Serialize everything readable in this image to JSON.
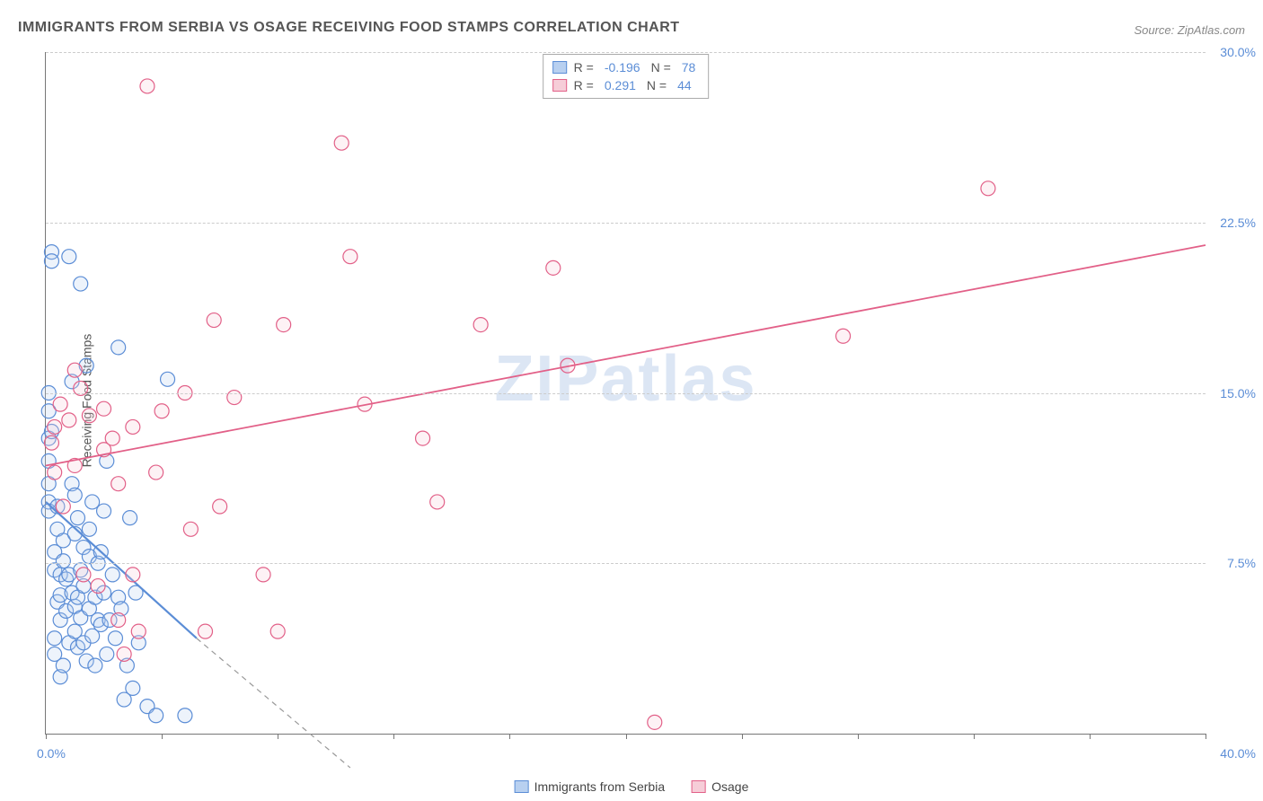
{
  "title": "IMMIGRANTS FROM SERBIA VS OSAGE RECEIVING FOOD STAMPS CORRELATION CHART",
  "source": "Source: ZipAtlas.com",
  "watermark": "ZIPatlas",
  "y_axis_title": "Receiving Food Stamps",
  "chart": {
    "type": "scatter",
    "background_color": "#ffffff",
    "grid_color": "#cccccc",
    "axis_color": "#777777",
    "tick_label_color": "#5b8dd6",
    "axis_title_color": "#555555",
    "tick_label_fontsize": 14,
    "title_fontsize": 16,
    "xlim": [
      0,
      40
    ],
    "ylim": [
      0,
      30
    ],
    "x_ticks": [
      0,
      4,
      8,
      12,
      16,
      20,
      24,
      28,
      32,
      36,
      40
    ],
    "y_ticks": [
      7.5,
      15.0,
      22.5,
      30.0
    ],
    "x_min_label": "0.0%",
    "x_max_label": "40.0%",
    "y_tick_labels": [
      "7.5%",
      "15.0%",
      "22.5%",
      "30.0%"
    ],
    "marker_radius": 8,
    "marker_fill_opacity": 0.25,
    "marker_stroke_width": 1.2
  },
  "stats_legend": {
    "rows": [
      {
        "swatch_fill": "#b8d0f0",
        "swatch_border": "#5b8dd6",
        "r_label": "R =",
        "r_value": "-0.196",
        "n_label": "N =",
        "n_value": "78"
      },
      {
        "swatch_fill": "#f6cdd8",
        "swatch_border": "#e26088",
        "r_label": "R =",
        "r_value": "0.291",
        "n_label": "N =",
        "n_value": "44"
      }
    ]
  },
  "bottom_legend": {
    "items": [
      {
        "swatch_fill": "#b8d0f0",
        "swatch_border": "#5b8dd6",
        "label": "Immigrants from Serbia"
      },
      {
        "swatch_fill": "#f6cdd8",
        "swatch_border": "#e26088",
        "label": "Osage"
      }
    ]
  },
  "series": [
    {
      "name": "Immigrants from Serbia",
      "color": "#5b8dd6",
      "fill": "#b8d0f0",
      "trend": {
        "x1": 0,
        "y1": 10.2,
        "x2": 5.2,
        "y2": 4.2,
        "solid_until_x": 5.2,
        "dash_to_x": 10.5,
        "dash_to_y": -1.5,
        "width": 2.2
      },
      "points": [
        [
          0.1,
          13.0
        ],
        [
          0.1,
          12.0
        ],
        [
          0.1,
          11.0
        ],
        [
          0.1,
          10.2
        ],
        [
          0.1,
          9.8
        ],
        [
          0.1,
          15.0
        ],
        [
          0.1,
          14.2
        ],
        [
          0.2,
          13.3
        ],
        [
          0.2,
          21.2
        ],
        [
          0.2,
          20.8
        ],
        [
          0.3,
          7.2
        ],
        [
          0.3,
          8.0
        ],
        [
          0.3,
          4.2
        ],
        [
          0.3,
          3.5
        ],
        [
          0.4,
          9.0
        ],
        [
          0.4,
          5.8
        ],
        [
          0.4,
          10.0
        ],
        [
          0.5,
          7.0
        ],
        [
          0.5,
          6.1
        ],
        [
          0.5,
          5.0
        ],
        [
          0.5,
          2.5
        ],
        [
          0.6,
          8.5
        ],
        [
          0.6,
          7.6
        ],
        [
          0.6,
          3.0
        ],
        [
          0.7,
          6.8
        ],
        [
          0.7,
          5.4
        ],
        [
          0.8,
          7.0
        ],
        [
          0.8,
          4.0
        ],
        [
          0.8,
          21.0
        ],
        [
          0.9,
          6.2
        ],
        [
          0.9,
          11.0
        ],
        [
          0.9,
          15.5
        ],
        [
          1.0,
          5.6
        ],
        [
          1.0,
          8.8
        ],
        [
          1.0,
          4.5
        ],
        [
          1.0,
          10.5
        ],
        [
          1.1,
          6.0
        ],
        [
          1.1,
          9.5
        ],
        [
          1.1,
          3.8
        ],
        [
          1.2,
          7.2
        ],
        [
          1.2,
          5.1
        ],
        [
          1.2,
          19.8
        ],
        [
          1.3,
          4.0
        ],
        [
          1.3,
          6.5
        ],
        [
          1.3,
          8.2
        ],
        [
          1.4,
          16.2
        ],
        [
          1.4,
          3.2
        ],
        [
          1.5,
          5.5
        ],
        [
          1.5,
          9.0
        ],
        [
          1.5,
          7.8
        ],
        [
          1.6,
          4.3
        ],
        [
          1.6,
          10.2
        ],
        [
          1.7,
          6.0
        ],
        [
          1.7,
          3.0
        ],
        [
          1.8,
          7.5
        ],
        [
          1.8,
          5.0
        ],
        [
          1.9,
          8.0
        ],
        [
          1.9,
          4.8
        ],
        [
          2.0,
          6.2
        ],
        [
          2.0,
          9.8
        ],
        [
          2.1,
          3.5
        ],
        [
          2.1,
          12.0
        ],
        [
          2.2,
          5.0
        ],
        [
          2.3,
          7.0
        ],
        [
          2.4,
          4.2
        ],
        [
          2.5,
          6.0
        ],
        [
          2.5,
          17.0
        ],
        [
          2.6,
          5.5
        ],
        [
          2.7,
          1.5
        ],
        [
          2.8,
          3.0
        ],
        [
          2.9,
          9.5
        ],
        [
          3.0,
          2.0
        ],
        [
          3.1,
          6.2
        ],
        [
          3.2,
          4.0
        ],
        [
          3.5,
          1.2
        ],
        [
          3.8,
          0.8
        ],
        [
          4.2,
          15.6
        ],
        [
          4.8,
          0.8
        ]
      ]
    },
    {
      "name": "Osage",
      "color": "#e26088",
      "fill": "#f6cdd8",
      "trend": {
        "x1": 0,
        "y1": 11.8,
        "x2": 40,
        "y2": 21.5,
        "solid_until_x": 40,
        "width": 1.8
      },
      "points": [
        [
          0.2,
          12.8
        ],
        [
          0.3,
          13.5
        ],
        [
          0.3,
          11.5
        ],
        [
          0.5,
          14.5
        ],
        [
          0.6,
          10.0
        ],
        [
          0.8,
          13.8
        ],
        [
          1.0,
          16.0
        ],
        [
          1.0,
          11.8
        ],
        [
          1.2,
          15.2
        ],
        [
          1.3,
          7.0
        ],
        [
          1.5,
          14.0
        ],
        [
          1.8,
          6.5
        ],
        [
          2.0,
          12.5
        ],
        [
          2.0,
          14.3
        ],
        [
          2.3,
          13.0
        ],
        [
          2.5,
          5.0
        ],
        [
          2.5,
          11.0
        ],
        [
          2.7,
          3.5
        ],
        [
          3.0,
          7.0
        ],
        [
          3.0,
          13.5
        ],
        [
          3.2,
          4.5
        ],
        [
          3.5,
          28.5
        ],
        [
          3.8,
          11.5
        ],
        [
          4.0,
          14.2
        ],
        [
          4.8,
          15.0
        ],
        [
          5.0,
          9.0
        ],
        [
          5.5,
          4.5
        ],
        [
          5.8,
          18.2
        ],
        [
          6.0,
          10.0
        ],
        [
          6.5,
          14.8
        ],
        [
          7.5,
          7.0
        ],
        [
          8.0,
          4.5
        ],
        [
          8.2,
          18.0
        ],
        [
          10.2,
          26.0
        ],
        [
          10.5,
          21.0
        ],
        [
          11.0,
          14.5
        ],
        [
          13.0,
          13.0
        ],
        [
          13.5,
          10.2
        ],
        [
          15.0,
          18.0
        ],
        [
          17.5,
          20.5
        ],
        [
          18.0,
          16.2
        ],
        [
          21.0,
          0.5
        ],
        [
          27.5,
          17.5
        ],
        [
          32.5,
          24.0
        ]
      ]
    }
  ]
}
